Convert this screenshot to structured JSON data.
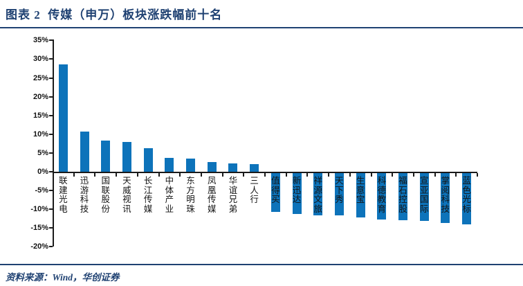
{
  "header": {
    "title": "图表 2  传媒（申万）板块涨跌幅前十名"
  },
  "footer": {
    "source": "资料来源：Wind，华创证券"
  },
  "colors": {
    "bar": "#0d73ba",
    "accent_navy": "#1f4172",
    "axis": "#1a1a1a"
  },
  "chart_data": {
    "type": "bar",
    "title": "传媒（申万）板块涨跌幅前十名",
    "xlabel": "",
    "ylabel": "",
    "unit": "%",
    "ylim": [
      -20,
      35
    ],
    "ytick_step": 5,
    "ytick_labels": [
      "35%",
      "30%",
      "25%",
      "20%",
      "15%",
      "10%",
      "5%",
      "0%",
      "-5%",
      "-10%",
      "-15%",
      "-20%"
    ],
    "grid": false,
    "legend_position": "none",
    "bar_color": "#0d73ba",
    "categories": [
      "联建光电",
      "迅游科技",
      "国联股份",
      "天威视讯",
      "长江传媒",
      "中体产业",
      "东方明珠",
      "凤凰传媒",
      "华谊兄弟",
      "三人行",
      "值得买",
      "新迅达",
      "祥源文旅",
      "天下秀",
      "生意宝",
      "科德教育",
      "福石控股",
      "宣亚国际",
      "掌阅科技",
      "蓝色光标"
    ],
    "values": [
      28.6,
      10.7,
      8.3,
      7.9,
      6.2,
      3.7,
      3.5,
      2.5,
      2.2,
      2.1,
      -10.4,
      -10.9,
      -11.2,
      -11.3,
      -11.9,
      -12.4,
      -12.5,
      -12.7,
      -13.2,
      -13.6
    ]
  }
}
